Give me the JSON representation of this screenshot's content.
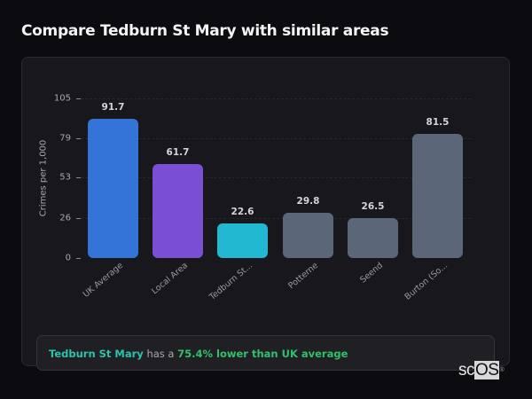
{
  "header": {
    "title": "Compare Tedburn St Mary with similar areas"
  },
  "chart_data": {
    "type": "bar",
    "title": "Compare Tedburn St Mary with similar areas",
    "xlabel": "",
    "ylabel": "Crimes per 1,000",
    "ylim": [
      0,
      105
    ],
    "yticks": [
      0,
      26,
      53,
      79,
      105
    ],
    "grid": true,
    "categories": [
      "UK Average",
      "Local Area",
      "Tedburn St...",
      "Potterne",
      "Seend",
      "Burton (So..."
    ],
    "values": [
      91.7,
      61.7,
      22.6,
      29.8,
      26.5,
      81.5
    ],
    "value_labels": [
      "91.7",
      "61.7",
      "22.6",
      "29.8",
      "26.5",
      "81.5"
    ],
    "colors": [
      "#3474d8",
      "#7a4fd6",
      "#22b8d2",
      "#5b6679",
      "#5b6679",
      "#5b6679"
    ]
  },
  "summary": {
    "area_name": "Tedburn St Mary",
    "middle_text": " has a ",
    "difference_text": "75.4% lower than UK average"
  },
  "watermark": {
    "prefix": "sc",
    "highlight": "OS",
    "mark": "®"
  }
}
